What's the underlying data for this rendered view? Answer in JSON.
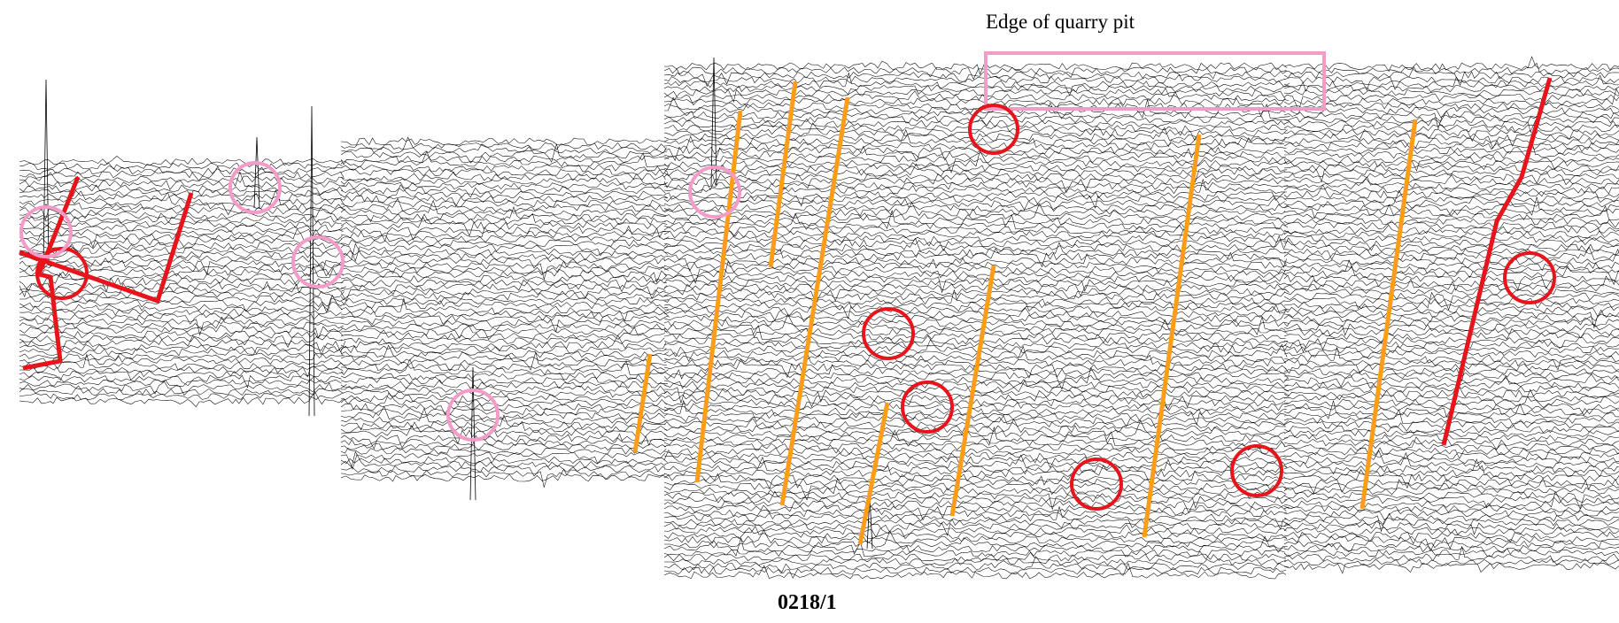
{
  "annotations": {
    "quarry_label": "Edge of quarry pit",
    "plot_id": "0218/1"
  },
  "colors": {
    "trace": "#000000",
    "red_feature": "#e8141c",
    "orange_feature": "#ff9d19",
    "pink_feature": "#f59bc8",
    "background": "#ffffff"
  },
  "legend_semantics": {
    "red_lines": "linear-anomaly",
    "orange_lines": "linear-anomaly",
    "red_circles": "discrete-anomaly",
    "pink_circles": "discrete-anomaly",
    "pink_rectangle": "quarry-pit-edge"
  }
}
